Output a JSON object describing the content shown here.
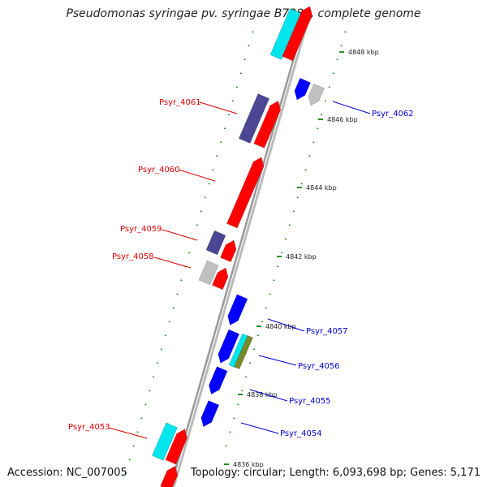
{
  "title": "Pseudomonas syringae pv. syringae B728a, complete genome",
  "accession": "Accession: NC_007005",
  "topology": "Topology: circular; Length: 6,093,698 bp; Genes: 5,171",
  "colors": {
    "forward_label": "#dd0000",
    "reverse_label": "#0000cc",
    "backbone": "#999999",
    "tick_dots": "#2a8a2a",
    "red": "#ff0000",
    "blue": "#0000ff",
    "cyan": "#00e5ee",
    "purple": "#4b4794",
    "gray": "#c0c0c0",
    "olive": "#7a8a2a"
  },
  "ticks": [
    {
      "label": "4848 kbp"
    },
    {
      "label": "4846 kbp"
    },
    {
      "label": "4844 kbp"
    },
    {
      "label": "4842 kbp"
    },
    {
      "label": "4840 kbp"
    },
    {
      "label": "4838 kbp"
    },
    {
      "label": "4836 kbp"
    }
  ],
  "gene_labels": [
    {
      "text": "Psyr_4061",
      "strand": "forward"
    },
    {
      "text": "Psyr_4060",
      "strand": "forward"
    },
    {
      "text": "Psyr_4059",
      "strand": "forward"
    },
    {
      "text": "Psyr_4058",
      "strand": "forward"
    },
    {
      "text": "Psyr_4053",
      "strand": "forward"
    },
    {
      "text": "Psyr_4062",
      "strand": "reverse"
    },
    {
      "text": "Psyr_4057",
      "strand": "reverse"
    },
    {
      "text": "Psyr_4056",
      "strand": "reverse"
    },
    {
      "text": "Psyr_4055",
      "strand": "reverse"
    },
    {
      "text": "Psyr_4054",
      "strand": "reverse"
    }
  ]
}
